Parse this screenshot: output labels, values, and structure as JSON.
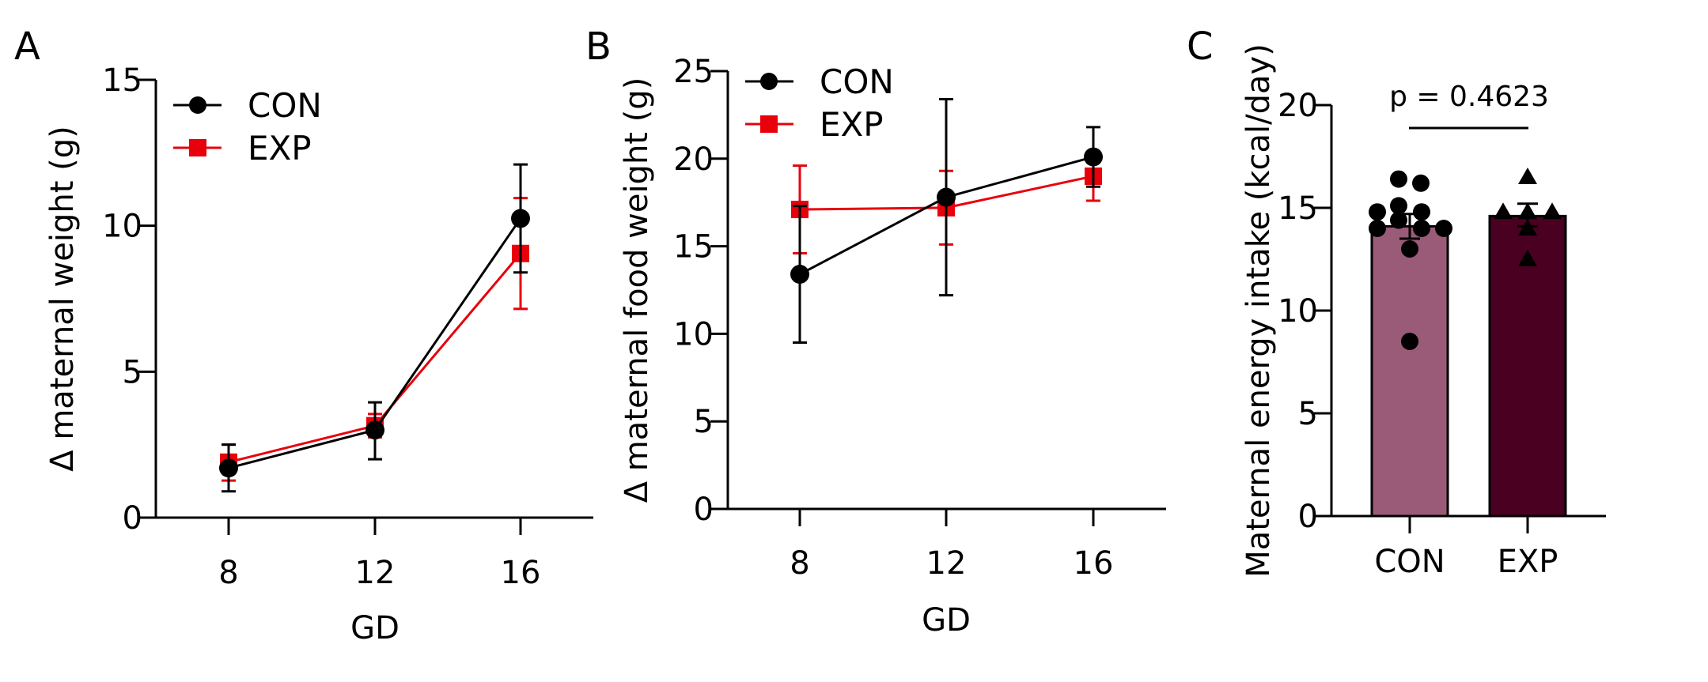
{
  "colors": {
    "con_line": "#000000",
    "exp_line": "#e8000b",
    "con_bar": "#9a5b78",
    "exp_bar": "#4a0020"
  },
  "chart_data": [
    {
      "panel": "A",
      "type": "line",
      "xlabel": "GD",
      "ylabel": "Δ maternal weight (g)",
      "x": [
        8,
        12,
        16
      ],
      "xticks": [
        "8",
        "12",
        "16"
      ],
      "ylim": [
        0,
        15
      ],
      "yticks": [
        "0",
        "5",
        "10",
        "15"
      ],
      "yticks_values": [
        0,
        5,
        10,
        15
      ],
      "legend": "top-left",
      "series": [
        {
          "name": "CON",
          "marker": "circle",
          "values": [
            1.7,
            3.0,
            10.25
          ],
          "err_low": [
            0.9,
            2.0,
            8.4
          ],
          "err_high": [
            2.5,
            3.95,
            12.1
          ]
        },
        {
          "name": "EXP",
          "marker": "square",
          "values": [
            1.9,
            3.15,
            9.05
          ],
          "err_low": [
            1.27,
            2.75,
            7.15
          ],
          "err_high": [
            2.5,
            3.55,
            10.95
          ]
        }
      ]
    },
    {
      "panel": "B",
      "type": "line",
      "xlabel": "GD",
      "ylabel": "Δ maternal food weight (g)",
      "x": [
        8,
        12,
        16
      ],
      "xticks": [
        "8",
        "12",
        "16"
      ],
      "ylim": [
        0,
        25
      ],
      "yticks": [
        "0",
        "5",
        "10",
        "15",
        "20",
        "25"
      ],
      "yticks_values": [
        0,
        5,
        10,
        15,
        20,
        25
      ],
      "legend": "top-left",
      "series": [
        {
          "name": "CON",
          "marker": "circle",
          "values": [
            13.4,
            17.8,
            20.1
          ],
          "err_low": [
            9.5,
            12.2,
            18.4
          ],
          "err_high": [
            17.3,
            23.4,
            21.8
          ]
        },
        {
          "name": "EXP",
          "marker": "square",
          "values": [
            17.1,
            17.2,
            19.0
          ],
          "err_low": [
            14.6,
            15.1,
            17.6
          ],
          "err_high": [
            19.6,
            19.3,
            20.3
          ]
        }
      ]
    },
    {
      "panel": "C",
      "type": "bar",
      "xlabel": "",
      "ylabel": "Maternal energy intake (kcal/day)",
      "categories": [
        "CON",
        "EXP"
      ],
      "values": [
        14.1,
        14.6
      ],
      "err_low": [
        13.5,
        14.1
      ],
      "err_high": [
        14.7,
        15.2
      ],
      "ylim": [
        0,
        20
      ],
      "yticks": [
        "0",
        "5",
        "10",
        "15",
        "20"
      ],
      "yticks_values": [
        0,
        5,
        10,
        15,
        20
      ],
      "annotation": "p = 0.4623",
      "points": [
        {
          "group": "CON",
          "marker": "circle",
          "values": [
            16.4,
            16.2,
            14.8,
            15.1,
            14.8,
            14.4,
            14.0,
            14.0,
            14.0,
            13.0,
            8.5
          ]
        },
        {
          "group": "EXP",
          "marker": "triangle",
          "values": [
            16.5,
            14.8,
            14.8,
            14.8,
            14.0,
            12.5
          ]
        }
      ]
    }
  ],
  "panel_labels": [
    "A",
    "B",
    "C"
  ]
}
